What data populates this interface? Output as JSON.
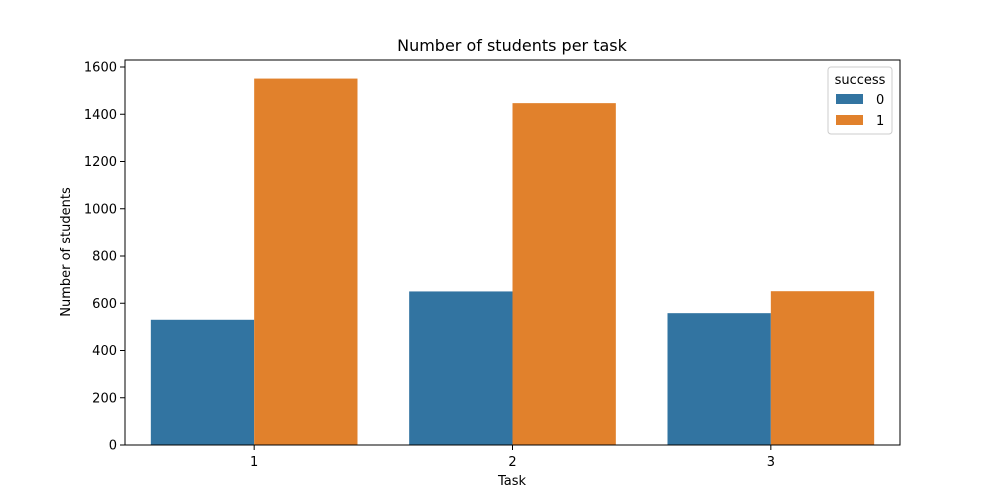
{
  "chart_data": {
    "type": "bar",
    "title": "Number of students per task",
    "xlabel": "Task",
    "ylabel": "Number of students",
    "categories": [
      "1",
      "2",
      "3"
    ],
    "series": [
      {
        "name": "0",
        "color": "#3274a1",
        "values": [
          530,
          650,
          558
        ]
      },
      {
        "name": "1",
        "color": "#e1812c",
        "values": [
          1551,
          1447,
          651
        ]
      }
    ],
    "ylim": [
      0,
      1600
    ],
    "yticks": [
      0,
      200,
      400,
      600,
      800,
      1000,
      1200,
      1400,
      1600
    ],
    "legend": {
      "title": "success",
      "placement": "top-right"
    },
    "grid": false
  }
}
